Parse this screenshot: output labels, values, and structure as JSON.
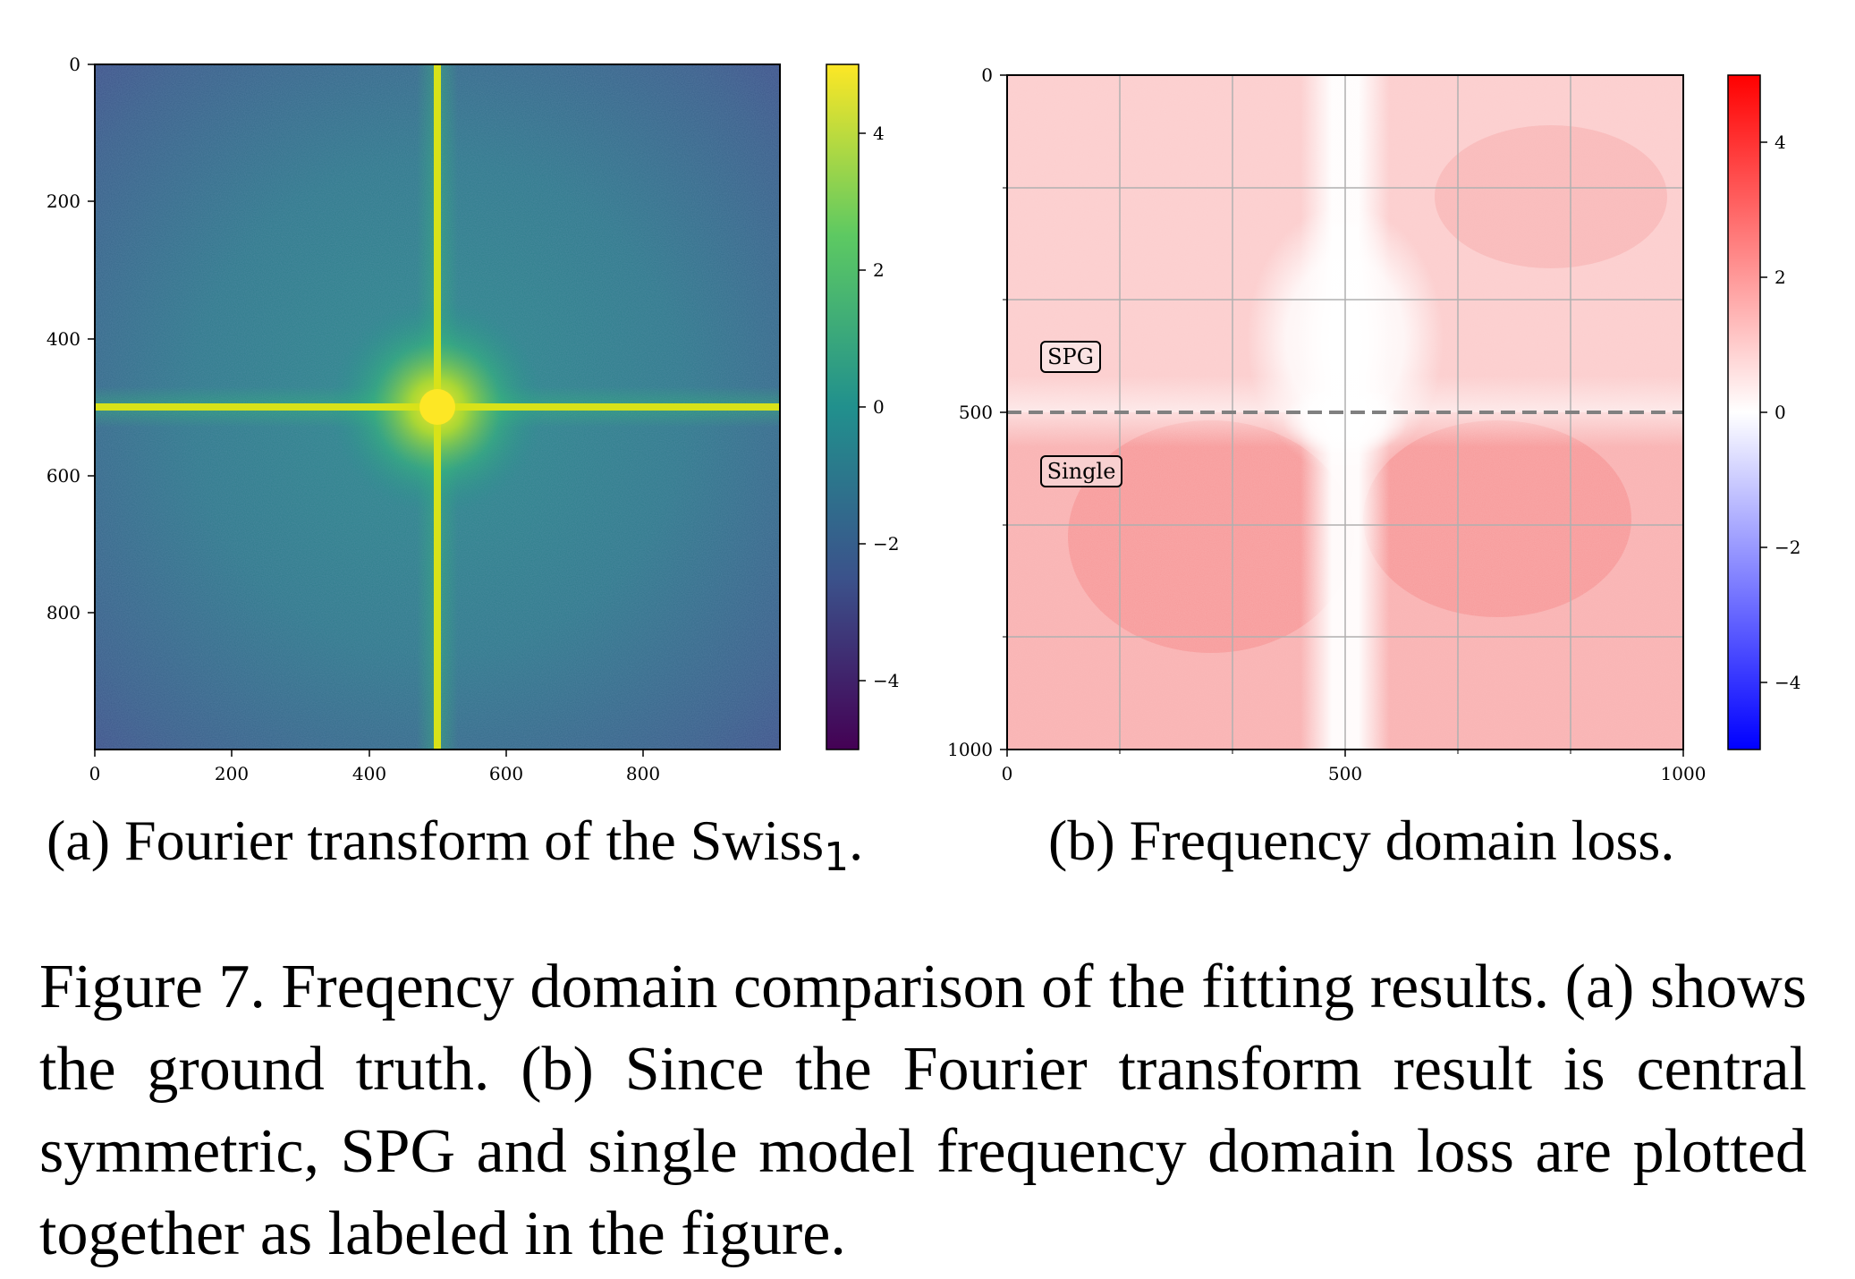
{
  "panel_a": {
    "xticks": [
      "0",
      "200",
      "400",
      "600",
      "800"
    ],
    "yticks": [
      "0",
      "200",
      "400",
      "600",
      "800"
    ],
    "colorbar_ticks": [
      "4",
      "2",
      "0",
      "−2",
      "−4"
    ],
    "subcaption": "(a) Fourier transform of the Swiss",
    "subcaption_subscript": "1",
    "subcaption_end": "."
  },
  "panel_b": {
    "xticks": [
      "0",
      "500",
      "1000"
    ],
    "yticks": [
      "0",
      "500",
      "1000"
    ],
    "colorbar_ticks": [
      "4",
      "2",
      "0",
      "−2",
      "−4"
    ],
    "label_top": "SPG",
    "label_bottom": "Single",
    "subcaption": "(b) Frequency domain loss."
  },
  "caption": "Figure 7.  Freqency domain comparison of the fitting results.  (a) shows the ground truth.  (b) Since the Fourier transform result is central symmetric, SPG and single model frequency domain loss are plotted together as labeled in the figure.",
  "chart_data": [
    {
      "type": "heatmap",
      "title": "",
      "xlim": [
        0,
        1000
      ],
      "ylim": [
        1000,
        0
      ],
      "x_ticks": [
        0,
        200,
        400,
        600,
        800
      ],
      "y_ticks": [
        0,
        200,
        400,
        600,
        800
      ],
      "colormap": "viridis",
      "colorbar_range": [
        -5,
        5
      ],
      "colorbar_ticks": [
        4,
        2,
        0,
        -2,
        -4
      ],
      "center": [
        500,
        500
      ]
    },
    {
      "type": "heatmap",
      "title": "",
      "xlim": [
        0,
        1000
      ],
      "ylim": [
        1000,
        0
      ],
      "x_ticks": [
        0,
        500,
        1000
      ],
      "y_ticks": [
        0,
        500,
        1000
      ],
      "colormap": "bwr",
      "colorbar_range": [
        -5,
        5
      ],
      "colorbar_ticks": [
        4,
        2,
        0,
        -2,
        -4
      ],
      "grid": true,
      "divider_y": 500,
      "annotations": [
        "SPG",
        "Single"
      ]
    }
  ]
}
